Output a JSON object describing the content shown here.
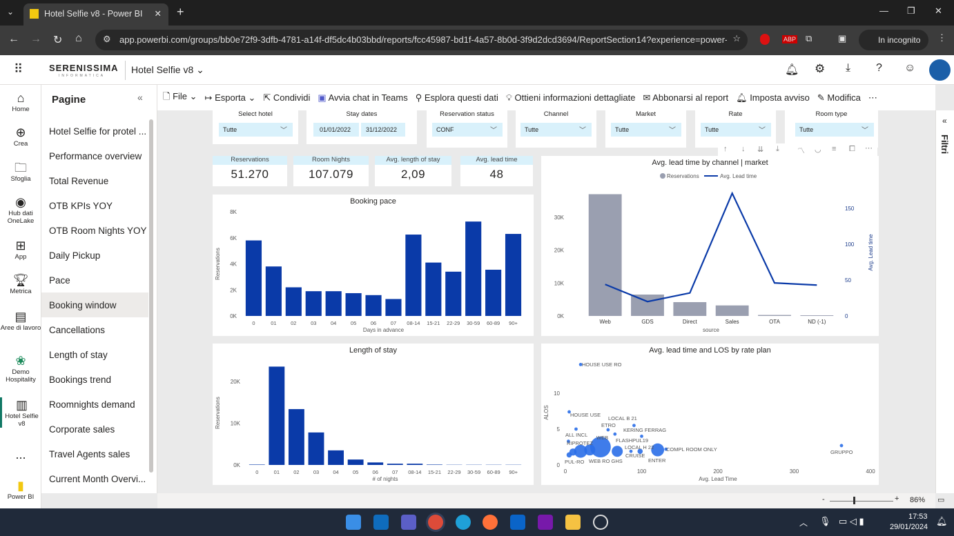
{
  "browser": {
    "tab_title": "Hotel Selfie v8 - Power BI",
    "url": "app.powerbi.com/groups/bb0e72f9-3dfb-4781-a14f-df5dc4b03bbd/reports/fcc45987-bd1f-4a57-8b0d-3f9d2dcd3694/ReportSection14?experience=power-bi",
    "incognito": "In incognito"
  },
  "header": {
    "logo": "SERENISSIMA",
    "logo_sub": "INFORMATICA",
    "report_name": "Hotel Selfie v8"
  },
  "rail": [
    {
      "label": "Home",
      "icon": "home-icon"
    },
    {
      "label": "Crea",
      "icon": "plus-icon"
    },
    {
      "label": "Sfoglia",
      "icon": "folder-icon"
    },
    {
      "label": "Hub dati OneLake",
      "icon": "hub-icon"
    },
    {
      "label": "App",
      "icon": "apps-icon"
    },
    {
      "label": "Metrica",
      "icon": "trophy-icon"
    },
    {
      "label": "Aree di lavoro",
      "icon": "workspaces-icon"
    },
    {
      "label": "Demo Hospitality",
      "icon": "people-icon"
    },
    {
      "label": "Hotel Selfie v8",
      "icon": "report-icon"
    },
    {
      "label": "...",
      "icon": "more-icon"
    },
    {
      "label": "Power BI",
      "icon": "powerbi-icon"
    }
  ],
  "pages": {
    "title": "Pagine",
    "items": [
      "Hotel Selfie for protel ...",
      "Performance overview",
      "Total Revenue",
      "OTB KPIs YOY",
      "OTB Room Nights YOY",
      "Daily Pickup",
      "Pace",
      "Booking window",
      "Cancellations",
      "Length of stay",
      "Bookings trend",
      "Roomnights demand",
      "Corporate sales",
      "Travel Agents sales",
      "Current Month Overvi..."
    ],
    "selected": "Booking window"
  },
  "toolbar": [
    "File",
    "Esporta",
    "Condividi",
    "Avvia chat in Teams",
    "Esplora questi dati",
    "Ottieni informazioni dettagliate",
    "Abbonarsi al report",
    "Imposta avviso",
    "Modifica"
  ],
  "slicers": [
    {
      "title": "Select hotel",
      "value": "Tutte"
    },
    {
      "title": "Stay dates",
      "from": "01/01/2022",
      "to": "31/12/2022"
    },
    {
      "title": "Reservation status",
      "value": "CONF"
    },
    {
      "title": "Channel",
      "value": "Tutte"
    },
    {
      "title": "Market",
      "value": "Tutte"
    },
    {
      "title": "Rate",
      "value": "Tutte"
    },
    {
      "title": "Room type",
      "value": "Tutte"
    }
  ],
  "kpis": [
    {
      "label": "Reservations",
      "value": "51.270"
    },
    {
      "label": "Room Nights",
      "value": "107.079"
    },
    {
      "label": "Avg. length of stay",
      "value": "2,09"
    },
    {
      "label": "Avg. lead time",
      "value": "48"
    }
  ],
  "filters_label": "Filtri",
  "status": {
    "zoom": "86%"
  },
  "taskbar": {
    "time": "17:53",
    "date": "29/01/2024"
  },
  "chart_data": [
    {
      "type": "bar",
      "title": "Booking pace",
      "xlabel": "Days in advance",
      "ylabel": "Reservations",
      "ylim": [
        0,
        8000
      ],
      "yticks": [
        "0K",
        "2K",
        "4K",
        "6K",
        "8K"
      ],
      "categories": [
        "0",
        "01",
        "02",
        "03",
        "04",
        "05",
        "06",
        "07",
        "08-14",
        "15-21",
        "22-29",
        "30-59",
        "60-89",
        "90+"
      ],
      "values": [
        5800,
        3800,
        2200,
        1900,
        1900,
        1750,
        1600,
        1300,
        6250,
        4100,
        3400,
        7250,
        3550,
        6300
      ],
      "color": "#0a3aa8"
    },
    {
      "type": "bar",
      "title": "Length of stay",
      "xlabel": "# of nights",
      "ylabel": "Reservations",
      "ylim": [
        0,
        25000
      ],
      "yticks": [
        "0K",
        "10K",
        "20K"
      ],
      "categories": [
        "0",
        "01",
        "02",
        "03",
        "04",
        "05",
        "06",
        "07",
        "08-14",
        "15-21",
        "22-29",
        "30-59",
        "60-89",
        "90+"
      ],
      "values": [
        100,
        23600,
        13400,
        7800,
        3500,
        1300,
        600,
        300,
        300,
        100,
        50,
        50,
        50,
        50
      ],
      "color": "#0a3aa8"
    },
    {
      "type": "bar+line",
      "title": "Avg. lead time by channel | market",
      "xlabel": "source",
      "legend": [
        "Reservations",
        "Avg. Lead time"
      ],
      "ylabel_right": "Avg. Lead time",
      "categories": [
        "Web",
        "GDS",
        "Direct",
        "Sales",
        "OTA",
        "ND (-1)"
      ],
      "series": [
        {
          "name": "Reservations",
          "type": "bar",
          "values": [
            37000,
            6500,
            4200,
            3200,
            300,
            200
          ],
          "ylim": [
            0,
            37000
          ],
          "yticks": [
            "0K",
            "10K",
            "20K",
            "30K"
          ]
        },
        {
          "name": "Avg. Lead time",
          "type": "line",
          "values": [
            44,
            20,
            32,
            171,
            46,
            43
          ],
          "ylim": [
            0,
            180
          ],
          "yticks": [
            "0",
            "50",
            "100",
            "150"
          ]
        }
      ],
      "colors": {
        "bar": "#9a9fb0",
        "line": "#0a3aa8"
      }
    },
    {
      "type": "scatter",
      "title": "Avg. lead time and LOS by rate plan",
      "xlabel": "Avg. Lead Time",
      "ylabel": "ALOS",
      "xlim": [
        0,
        400
      ],
      "ylim": [
        0,
        14
      ],
      "xticks": [
        "0",
        "100",
        "200",
        "300",
        "400"
      ],
      "yticks": [
        "0",
        "5",
        "10"
      ],
      "points": [
        {
          "label": "HOUSE USE RO",
          "x": 20,
          "y": 14,
          "size": 1
        },
        {
          "label": "HOUSE USE",
          "x": 5,
          "y": 7.4,
          "size": 1
        },
        {
          "label": "LOCAL B 21",
          "x": 90,
          "y": 5.5,
          "size": 1
        },
        {
          "label": "ETRO",
          "x": 56,
          "y": 4.9,
          "size": 1
        },
        {
          "label": "KERING FERRAG",
          "x": 65,
          "y": 4.3,
          "size": 1
        },
        {
          "label": "ALL INCL",
          "x": 14,
          "y": 5,
          "size": 1
        },
        {
          "label": "WEB",
          "x": 46,
          "y": 2.5,
          "size": 10
        },
        {
          "label": "FLASHPUL19",
          "x": 100,
          "y": 4,
          "size": 1
        },
        {
          "label": "RIPROTEZ",
          "x": 4,
          "y": 3.3,
          "size": 1
        },
        {
          "label": "LOCAL H 22",
          "x": 98,
          "y": 1.9,
          "size": 2
        },
        {
          "label": "COMPL ROOM ONLY",
          "x": 132,
          "y": 2.2,
          "size": 1
        },
        {
          "label": "CRUISE",
          "x": 86,
          "y": 1.9,
          "size": 1
        },
        {
          "label": "ENTER",
          "x": 121,
          "y": 2.1,
          "size": 6
        },
        {
          "label": "PUL-RO",
          "x": 5,
          "y": 1.4,
          "size": 2
        },
        {
          "label": "WEB RO GHS",
          "x": 68,
          "y": 1.9,
          "size": 5
        },
        {
          "label": "GRUPPO",
          "x": 362,
          "y": 2.7,
          "size": 1
        },
        {
          "label": "",
          "x": 20,
          "y": 1.9,
          "size": 6
        },
        {
          "label": "",
          "x": 32,
          "y": 2.1,
          "size": 5
        },
        {
          "label": "",
          "x": 10,
          "y": 1.8,
          "size": 3
        }
      ],
      "color": "#2a6ee8"
    }
  ]
}
